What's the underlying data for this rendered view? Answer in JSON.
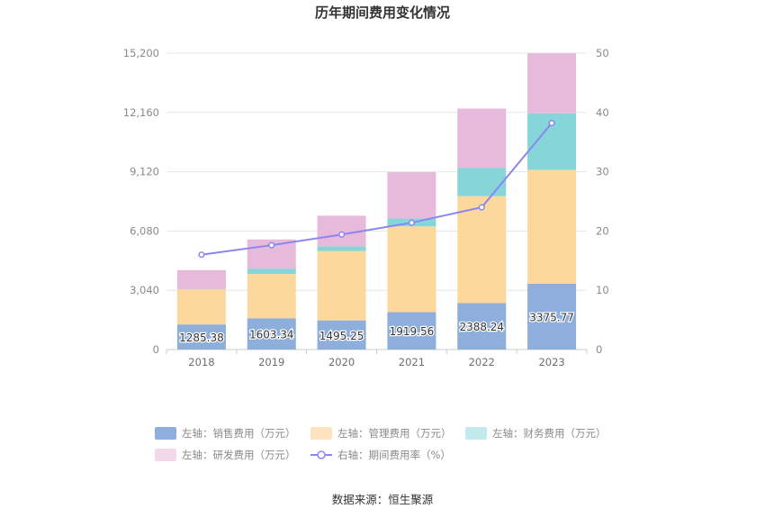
{
  "chart_data": {
    "type": "bar",
    "stacked": true,
    "title": "历年期间费用变化情况",
    "categories": [
      "2018",
      "2019",
      "2020",
      "2021",
      "2022",
      "2023"
    ],
    "left_axis": {
      "min": 0,
      "max": 15200,
      "ticks": [
        "0",
        "3,040",
        "6,080",
        "9,120",
        "12,160",
        "15,200"
      ]
    },
    "right_axis": {
      "min": 0,
      "max": 50,
      "ticks": [
        "0",
        "10",
        "20",
        "30",
        "40",
        "50"
      ]
    },
    "series": [
      {
        "name": "左轴：销售费用（万元）",
        "axis": "left",
        "kind": "bar",
        "color": "#8eaedb",
        "values": [
          1285.38,
          1603.34,
          1495.25,
          1919.56,
          2388.24,
          3375.77
        ],
        "data_labels": [
          "1285.38",
          "1603.34",
          "1495.25",
          "1919.56",
          "2388.24",
          "3375.77"
        ]
      },
      {
        "name": "左轴：管理费用（万元）",
        "axis": "left",
        "kind": "bar",
        "color": "#fdd89c",
        "values": [
          1800,
          2270,
          3560,
          4400,
          5480,
          5840
        ]
      },
      {
        "name": "左轴：财务费用（万元）",
        "axis": "left",
        "kind": "bar",
        "color": "#85d5d9",
        "values": [
          10,
          270,
          230,
          400,
          1450,
          2900
        ]
      },
      {
        "name": "左轴：研发费用（万元）",
        "axis": "left",
        "kind": "bar",
        "color": "#e7b9da",
        "values": [
          980,
          1500,
          1580,
          2380,
          3040,
          3080
        ]
      },
      {
        "name": "右轴：期间费用率（%）",
        "axis": "right",
        "kind": "line",
        "color": "#8a86f0",
        "values": [
          16.0,
          17.6,
          19.4,
          21.4,
          24.0,
          38.2
        ]
      }
    ],
    "legend_position": "bottom",
    "grid": true
  },
  "legend_items": [
    {
      "label": "左轴：销售费用（万元）",
      "color": "#8eaedb",
      "marker": "bar"
    },
    {
      "label": "左轴：管理费用（万元）",
      "color": "#fde3bf",
      "marker": "bar"
    },
    {
      "label": "左轴：财务费用（万元）",
      "color": "#c2eaec",
      "marker": "bar"
    },
    {
      "label": "左轴：研发费用（万元）",
      "color": "#f2d9ea",
      "marker": "bar"
    },
    {
      "label": "右轴：期间费用率（%）",
      "color": "#8a86f0",
      "marker": "line"
    }
  ],
  "source": "数据来源：恒生聚源"
}
